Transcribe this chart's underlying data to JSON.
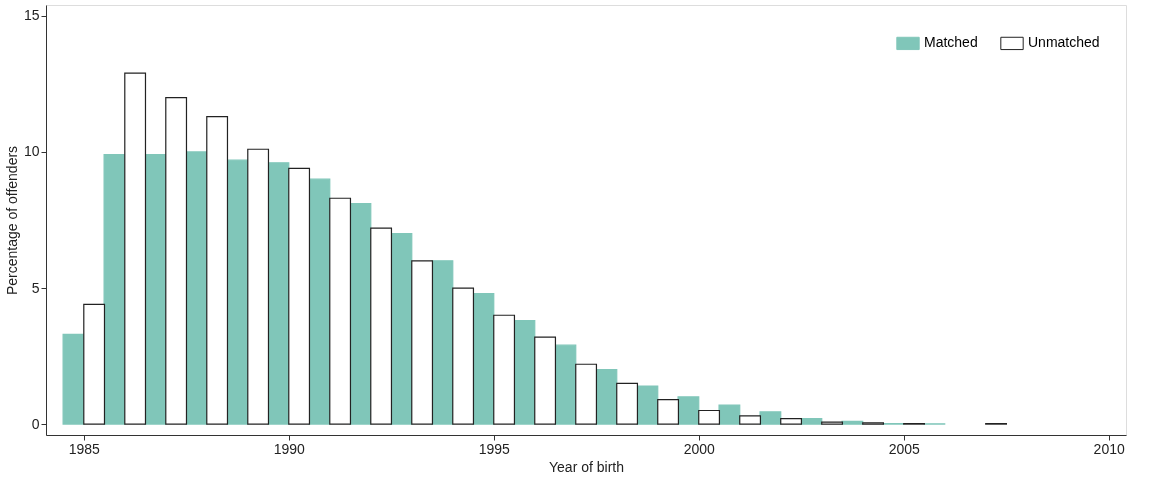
{
  "chart_data": {
    "type": "bar",
    "xlabel": "Year of birth",
    "ylabel": "Percentage of offenders",
    "x": [
      1985,
      1986,
      1987,
      1988,
      1989,
      1990,
      1991,
      1992,
      1993,
      1994,
      1995,
      1996,
      1997,
      1998,
      1999,
      2000,
      2001,
      2002,
      2003,
      2004,
      2005,
      2006,
      2007
    ],
    "series": [
      {
        "name": "Matched",
        "color": "#80c6b9",
        "values": [
          3.3,
          9.9,
          9.9,
          10.0,
          9.7,
          9.6,
          9.0,
          8.1,
          7.0,
          6.0,
          4.8,
          3.8,
          2.9,
          2.0,
          1.4,
          1.0,
          0.7,
          0.45,
          0.2,
          0.1,
          0.02,
          0.01,
          null
        ]
      },
      {
        "name": "Unmatched",
        "color": "#ffffff",
        "values": [
          4.4,
          12.9,
          12.0,
          11.3,
          10.1,
          9.4,
          8.3,
          7.2,
          6.0,
          5.0,
          4.0,
          3.2,
          2.2,
          1.5,
          0.9,
          0.5,
          0.3,
          0.2,
          0.07,
          0.05,
          0.02,
          null,
          0.02
        ]
      }
    ],
    "xlim": [
      1984.2,
      2010.3
    ],
    "xticks": [
      1985,
      1990,
      1995,
      2000,
      2005,
      2010
    ],
    "ylim": [
      -0.4,
      15.4
    ],
    "yticks": [
      0,
      5,
      10,
      15
    ],
    "grid": false,
    "legend": "top right"
  }
}
